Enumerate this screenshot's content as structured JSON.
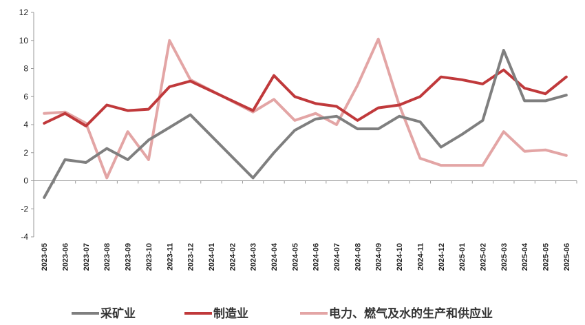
{
  "chart_data": {
    "type": "line",
    "categories": [
      "2023-05",
      "2023-06",
      "2023-07",
      "2023-08",
      "2023-09",
      "2023-10",
      "2023-11",
      "2023-12",
      "2024-01",
      "2024-02",
      "2024-03",
      "2024-04",
      "2024-05",
      "2024-06",
      "2024-07",
      "2024-08",
      "2024-09",
      "2024-10",
      "2024-11",
      "2024-12",
      "2025-01",
      "2025-02",
      "2025-03",
      "2025-04",
      "2025-05",
      "2025-06"
    ],
    "ylim": [
      -4,
      12
    ],
    "yticks": [
      -4,
      -2,
      0,
      2,
      4,
      6,
      8,
      10,
      12
    ],
    "grid": false,
    "legend_position": "bottom",
    "series": [
      {
        "name": "采矿业",
        "color": "#7f7f7f",
        "values": [
          -1.2,
          1.5,
          1.3,
          2.3,
          1.5,
          2.9,
          3.8,
          4.7,
          null,
          null,
          0.2,
          2.0,
          3.6,
          4.4,
          4.6,
          3.7,
          3.7,
          4.6,
          4.2,
          2.4,
          3.3,
          4.3,
          9.3,
          5.7,
          5.7,
          6.1
        ]
      },
      {
        "name": "制造业",
        "color": "#c0393b",
        "values": [
          4.1,
          4.8,
          3.9,
          5.4,
          5.0,
          5.1,
          6.7,
          7.1,
          null,
          null,
          5.0,
          7.5,
          6.0,
          5.5,
          5.3,
          4.3,
          5.2,
          5.4,
          6.0,
          7.4,
          7.2,
          6.9,
          7.9,
          6.6,
          6.2,
          7.4
        ]
      },
      {
        "name": "电力、燃气及水的生产和供应业",
        "color": "#e3a5a5",
        "values": [
          4.8,
          4.9,
          4.1,
          0.2,
          3.5,
          1.5,
          10.0,
          7.2,
          null,
          null,
          4.9,
          5.8,
          4.3,
          4.8,
          4.0,
          6.8,
          10.1,
          5.4,
          1.6,
          1.1,
          1.1,
          1.1,
          3.5,
          2.1,
          2.2,
          1.8
        ]
      }
    ]
  }
}
